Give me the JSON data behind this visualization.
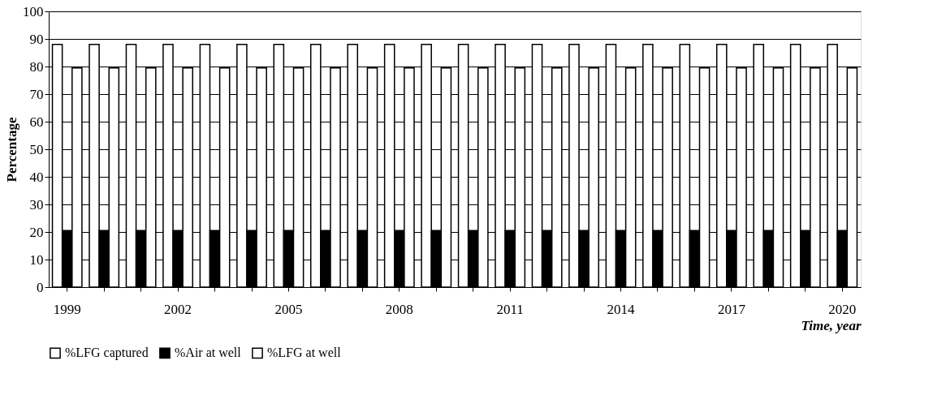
{
  "chart_data": {
    "type": "bar",
    "xlabel": "Time, year",
    "ylabel": "Percentage",
    "categories": [
      "1999",
      null,
      null,
      "2002",
      null,
      null,
      "2005",
      null,
      null,
      "2008",
      null,
      null,
      "2011",
      null,
      null,
      "2014",
      null,
      null,
      "2017",
      null,
      null,
      "2020"
    ],
    "series": [
      {
        "name": "%LFG captured",
        "color": "#ffffff",
        "values": [
          88,
          88,
          88,
          88,
          88,
          88,
          88,
          88,
          88,
          88,
          88,
          88,
          88,
          88,
          88,
          88,
          88,
          88,
          88,
          88,
          88,
          88
        ]
      },
      {
        "name": "%Air at well",
        "color": "#000000",
        "values": [
          20.5,
          20.5,
          20.5,
          20.5,
          20.5,
          20.5,
          20.5,
          20.5,
          20.5,
          20.5,
          20.5,
          20.5,
          20.5,
          20.5,
          20.5,
          20.5,
          20.5,
          20.5,
          20.5,
          20.5,
          20.5,
          20.5
        ]
      },
      {
        "name": "%LFG at well",
        "color": "#ffffff",
        "values": [
          79.5,
          79.5,
          79.5,
          79.5,
          79.5,
          79.5,
          79.5,
          79.5,
          79.5,
          79.5,
          79.5,
          79.5,
          79.5,
          79.5,
          79.5,
          79.5,
          79.5,
          79.5,
          79.5,
          79.5,
          79.5,
          79.5
        ]
      }
    ],
    "ylim": [
      0,
      100
    ],
    "yticks": [
      0,
      10,
      20,
      30,
      40,
      50,
      60,
      70,
      80,
      90,
      100
    ],
    "grid": "y",
    "legend": "bottom"
  }
}
